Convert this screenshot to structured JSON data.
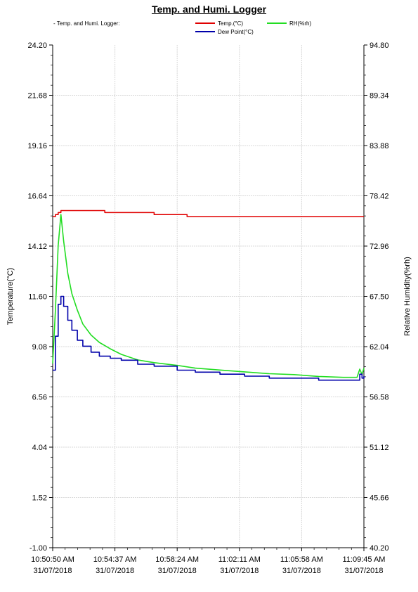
{
  "chart_data": {
    "type": "line",
    "title": "Temp. and Humi. Logger",
    "logger_name": "- Temp. and Humi. Logger:",
    "ylabel_left": "Temperature(°C)",
    "ylabel_right": "Relative Humidity(%rh)",
    "y_left_ticks": [
      "24.20",
      "21.68",
      "19.16",
      "16.64",
      "14.12",
      "11.60",
      "9.08",
      "6.56",
      "4.04",
      "1.52",
      "-1.00"
    ],
    "y_right_ticks": [
      "94.80",
      "89.34",
      "83.88",
      "78.42",
      "72.96",
      "67.50",
      "62.04",
      "56.58",
      "51.12",
      "45.66",
      "40.20"
    ],
    "ylim_left": [
      -1.0,
      24.2
    ],
    "ylim_right": [
      40.2,
      94.8
    ],
    "x_ticks": [
      {
        "time": "10:50:50 AM",
        "date": "31/07/2018"
      },
      {
        "time": "10:54:37 AM",
        "date": "31/07/2018"
      },
      {
        "time": "10:58:24 AM",
        "date": "31/07/2018"
      },
      {
        "time": "11:02:11 AM",
        "date": "31/07/2018"
      },
      {
        "time": "11:05:58 AM",
        "date": "31/07/2018"
      },
      {
        "time": "11:09:45 AM",
        "date": "31/07/2018"
      }
    ],
    "grid": true,
    "colors": {
      "temp": "#e00000",
      "rh": "#22dd22",
      "dew": "#0000aa"
    },
    "series": [
      {
        "name": "Temp.(°C)",
        "axis": "left",
        "color": "#e00000",
        "x": [
          "10:50:50",
          "10:51:00",
          "10:51:10",
          "10:51:20",
          "10:51:40",
          "10:52:30",
          "10:54:00",
          "10:55:00",
          "10:57:00",
          "10:58:24",
          "10:59:00",
          "11:02:00",
          "11:05:00",
          "11:08:00",
          "11:09:45"
        ],
        "y": [
          15.6,
          15.7,
          15.8,
          15.9,
          15.9,
          15.9,
          15.8,
          15.8,
          15.7,
          15.7,
          15.6,
          15.6,
          15.6,
          15.6,
          15.6
        ]
      },
      {
        "name": "RH(%rh)",
        "axis": "right",
        "color": "#22dd22",
        "x": [
          "10:50:50",
          "10:51:00",
          "10:51:10",
          "10:51:20",
          "10:51:30",
          "10:51:45",
          "10:52:00",
          "10:52:20",
          "10:52:40",
          "10:53:10",
          "10:53:40",
          "10:54:20",
          "10:55:00",
          "10:56:00",
          "10:57:00",
          "10:58:24",
          "10:59:30",
          "11:01:00",
          "11:02:30",
          "11:04:00",
          "11:05:30",
          "11:07:00",
          "11:08:30",
          "11:09:20",
          "11:09:30",
          "11:09:38",
          "11:09:45"
        ],
        "y": [
          60.2,
          66.0,
          73.0,
          76.4,
          73.5,
          70.0,
          67.8,
          66.0,
          64.5,
          63.3,
          62.5,
          61.8,
          61.2,
          60.6,
          60.3,
          60.0,
          59.7,
          59.5,
          59.3,
          59.1,
          59.0,
          58.8,
          58.7,
          58.7,
          59.6,
          59.0,
          59.7
        ]
      },
      {
        "name": "Dew Point(°C)",
        "axis": "left",
        "color": "#0000aa",
        "x": [
          "10:50:50",
          "10:51:00",
          "10:51:10",
          "10:51:20",
          "10:51:30",
          "10:51:45",
          "10:52:00",
          "10:52:20",
          "10:52:40",
          "10:53:10",
          "10:53:40",
          "10:54:20",
          "10:55:00",
          "10:56:00",
          "10:57:00",
          "10:58:24",
          "10:59:30",
          "11:01:00",
          "11:02:30",
          "11:04:00",
          "11:05:30",
          "11:07:00",
          "11:08:30",
          "11:09:20",
          "11:09:30",
          "11:09:38",
          "11:09:45"
        ],
        "y": [
          7.9,
          9.6,
          11.2,
          11.6,
          11.1,
          10.4,
          9.9,
          9.4,
          9.1,
          8.8,
          8.6,
          8.5,
          8.4,
          8.2,
          8.1,
          7.9,
          7.8,
          7.7,
          7.6,
          7.5,
          7.5,
          7.4,
          7.4,
          7.4,
          7.7,
          7.5,
          7.6
        ]
      }
    ]
  }
}
